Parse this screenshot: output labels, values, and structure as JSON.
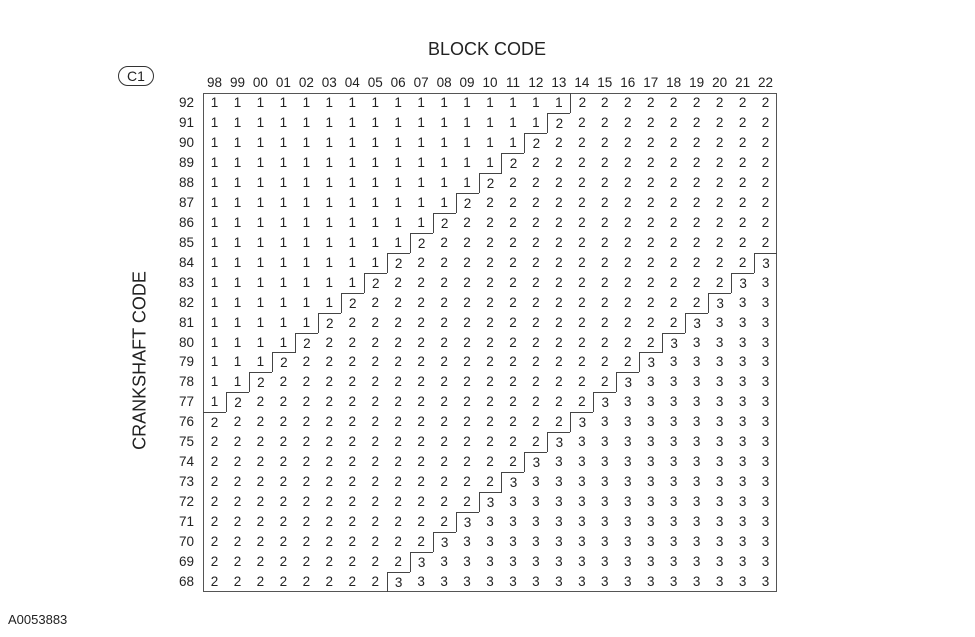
{
  "title": "BLOCK CODE",
  "y_title": "CRANKSHAFT CODE",
  "badge": "C1",
  "figure_id": "A0053883",
  "columns": [
    "98",
    "99",
    "00",
    "01",
    "02",
    "03",
    "04",
    "05",
    "06",
    "07",
    "08",
    "09",
    "10",
    "11",
    "12",
    "13",
    "14",
    "15",
    "16",
    "17",
    "18",
    "19",
    "20",
    "21",
    "22"
  ],
  "rows": [
    {
      "label": "92",
      "values": "1111111111111111222222222"
    },
    {
      "label": "91",
      "values": "1111111111111112222222222"
    },
    {
      "label": "90",
      "values": "1111111111111122222222222"
    },
    {
      "label": "89",
      "values": "1111111111111222222222222"
    },
    {
      "label": "88",
      "values": "1111111111112222222222222"
    },
    {
      "label": "87",
      "values": "1111111111122222222222222"
    },
    {
      "label": "86",
      "values": "1111111111222222222222222"
    },
    {
      "label": "85",
      "values": "1111111112222222222222222"
    },
    {
      "label": "84",
      "values": "1111111122222222222222223"
    },
    {
      "label": "83",
      "values": "1111111222222222222222233"
    },
    {
      "label": "82",
      "values": "1111112222222222222222333"
    },
    {
      "label": "81",
      "values": "1111122222222222222223333"
    },
    {
      "label": "80",
      "values": "1111222222222222222233333"
    },
    {
      "label": "79",
      "values": "1112222222222222222333333"
    },
    {
      "label": "78",
      "values": "1122222222222222223333333"
    },
    {
      "label": "77",
      "values": "1222222222222222233333333"
    },
    {
      "label": "76",
      "values": "2222222222222222333333333"
    },
    {
      "label": "75",
      "values": "2222222222222223333333333"
    },
    {
      "label": "74",
      "values": "2222222222222233333333333"
    },
    {
      "label": "73",
      "values": "2222222222222333333333333"
    },
    {
      "label": "72",
      "values": "2222222222223333333333333"
    },
    {
      "label": "71",
      "values": "2222222222233333333333333"
    },
    {
      "label": "70",
      "values": "2222222222333333333333333"
    },
    {
      "label": "69",
      "values": "2222222223333333333333333"
    },
    {
      "label": "68",
      "values": "2222222233333333333333333"
    }
  ]
}
